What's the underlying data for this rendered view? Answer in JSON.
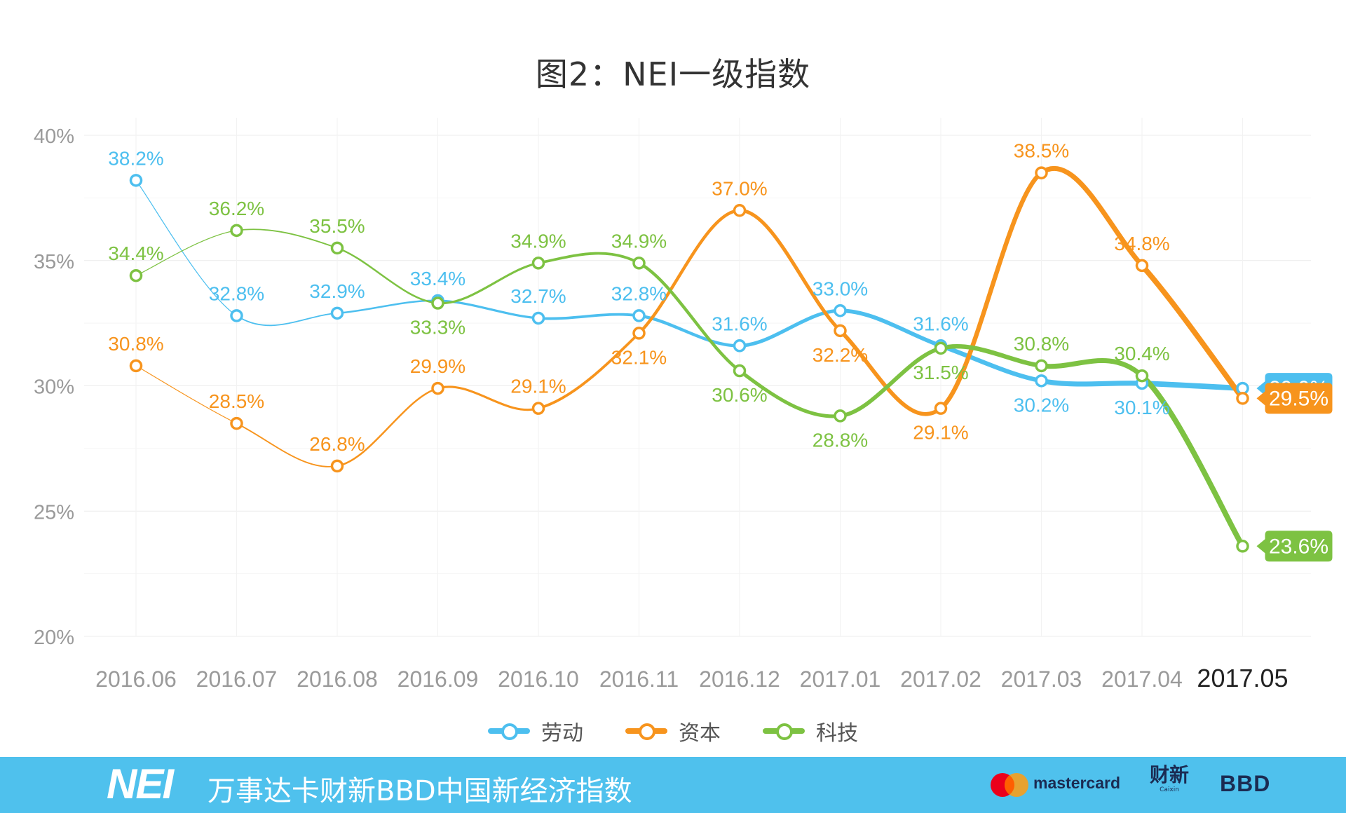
{
  "chart_data": {
    "type": "line",
    "title": "图2：NEI一级指数",
    "xlabel": "",
    "ylabel": "",
    "categories": [
      "2016.06",
      "2016.07",
      "2016.08",
      "2016.09",
      "2016.10",
      "2016.11",
      "2016.12",
      "2017.01",
      "2017.02",
      "2017.03",
      "2017.04",
      "2017.05"
    ],
    "ylim": [
      20,
      40
    ],
    "yticks": [
      20,
      25,
      30,
      35,
      40
    ],
    "ytick_labels": [
      "20%",
      "25%",
      "30%",
      "35%",
      "40%"
    ],
    "grid": true,
    "legend_position": "bottom",
    "highlight_category": "2017.05",
    "series": [
      {
        "name": "劳动",
        "color": "#4dbfef",
        "values": [
          38.2,
          32.8,
          32.9,
          33.4,
          32.7,
          32.8,
          31.6,
          33.0,
          31.6,
          30.2,
          30.1,
          29.9
        ],
        "labels": [
          "38.2%",
          "32.8%",
          "32.9%",
          "33.4%",
          "32.7%",
          "32.8%",
          "31.6%",
          "33.0%",
          "31.6%",
          "30.2%",
          "30.1%",
          "29.9%"
        ],
        "label_side": [
          "above",
          "above",
          "above",
          "above",
          "above",
          "above",
          "above",
          "above",
          "above",
          "below",
          "below",
          "tag"
        ]
      },
      {
        "name": "资本",
        "color": "#f7941d",
        "values": [
          30.8,
          28.5,
          26.8,
          29.9,
          29.1,
          32.1,
          37.0,
          32.2,
          29.1,
          38.5,
          34.8,
          29.5
        ],
        "labels": [
          "30.8%",
          "28.5%",
          "26.8%",
          "29.9%",
          "29.1%",
          "32.1%",
          "37.0%",
          "32.2%",
          "29.1%",
          "38.5%",
          "34.8%",
          "29.5%"
        ],
        "label_side": [
          "above",
          "above",
          "above",
          "above",
          "above",
          "below",
          "above",
          "below",
          "below",
          "above",
          "above",
          "tag"
        ]
      },
      {
        "name": "科技",
        "color": "#7dc242",
        "values": [
          34.4,
          36.2,
          35.5,
          33.3,
          34.9,
          34.9,
          30.6,
          28.8,
          31.5,
          30.8,
          30.4,
          23.6
        ],
        "labels": [
          "34.4%",
          "36.2%",
          "35.5%",
          "33.3%",
          "34.9%",
          "34.9%",
          "30.6%",
          "28.8%",
          "31.5%",
          "30.8%",
          "30.4%",
          "23.6%"
        ],
        "label_side": [
          "above",
          "above",
          "above",
          "below",
          "above",
          "above",
          "below",
          "below",
          "below",
          "above",
          "above",
          "tag"
        ]
      }
    ]
  },
  "footer": {
    "logo": "NEI",
    "name": "万事达卡财新BBD中国新经济指数",
    "sponsor_mastercard": "mastercard",
    "sponsor_caixin": "财新",
    "sponsor_caixin_en": "Caixin",
    "sponsor_bbd": "BBD",
    "background_color": "#4fc1ed"
  }
}
